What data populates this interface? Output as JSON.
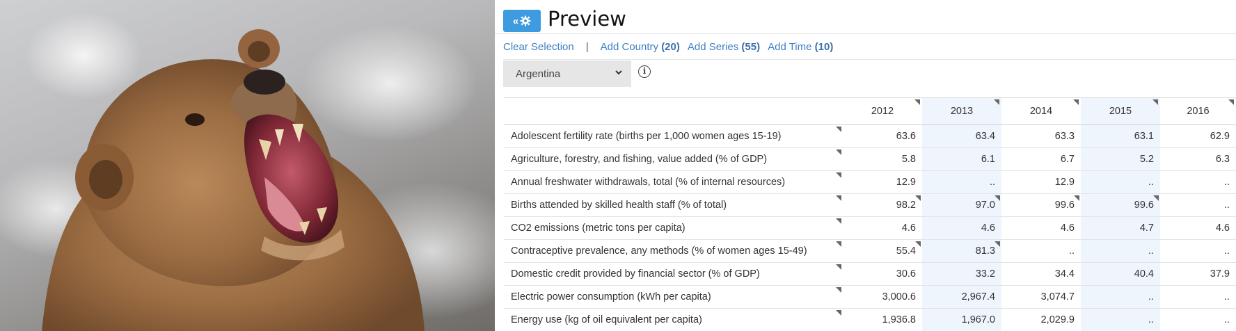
{
  "panel": {
    "title": "Preview",
    "toggle_label": "«"
  },
  "actions": {
    "clear": "Clear Selection",
    "separator": "|",
    "add_country": {
      "label": "Add Country",
      "count": "(20)"
    },
    "add_series": {
      "label": "Add Series",
      "count": "(55)"
    },
    "add_time": {
      "label": "Add Time",
      "count": "(10)"
    }
  },
  "country_select": {
    "value": "Argentina"
  },
  "info_icon": "i",
  "table": {
    "years": [
      "2012",
      "2013",
      "2014",
      "2015",
      "2016"
    ],
    "rows": [
      {
        "label": "Adolescent fertility rate (births per 1,000 women ages 15-19)",
        "values": [
          "63.6",
          "63.4",
          "63.3",
          "63.1",
          "62.9"
        ]
      },
      {
        "label": "Agriculture, forestry, and fishing, value added (% of GDP)",
        "values": [
          "5.8",
          "6.1",
          "6.7",
          "5.2",
          "6.3"
        ]
      },
      {
        "label": "Annual freshwater withdrawals, total (% of internal resources)",
        "values": [
          "12.9",
          "..",
          "12.9",
          "..",
          ".."
        ]
      },
      {
        "label": "Births attended by skilled health staff (% of total)",
        "values": [
          "98.2",
          "97.0",
          "99.6",
          "99.6",
          ".."
        ]
      },
      {
        "label": "CO2 emissions (metric tons per capita)",
        "values": [
          "4.6",
          "4.6",
          "4.6",
          "4.7",
          "4.6"
        ]
      },
      {
        "label": "Contraceptive prevalence, any methods (% of women ages 15-49)",
        "values": [
          "55.4",
          "81.3",
          "..",
          "..",
          ".."
        ]
      },
      {
        "label": "Domestic credit provided by financial sector (% of GDP)",
        "values": [
          "30.6",
          "33.2",
          "34.4",
          "40.4",
          "37.9"
        ]
      },
      {
        "label": "Electric power consumption (kWh per capita)",
        "values": [
          "3,000.6",
          "2,967.4",
          "3,074.7",
          "..",
          ".."
        ]
      },
      {
        "label": "Energy use (kg of oil equivalent per capita)",
        "values": [
          "1,936.8",
          "1,967.0",
          "2,029.9",
          "..",
          ".."
        ]
      }
    ]
  },
  "colors": {
    "accent": "#3f9be0",
    "link": "#3d7fc4",
    "alt_column": "#eef5fc"
  },
  "icons": [
    "gear-icon",
    "collapse-icon",
    "chevron-down-icon",
    "info-icon",
    "note-marker-icon"
  ]
}
